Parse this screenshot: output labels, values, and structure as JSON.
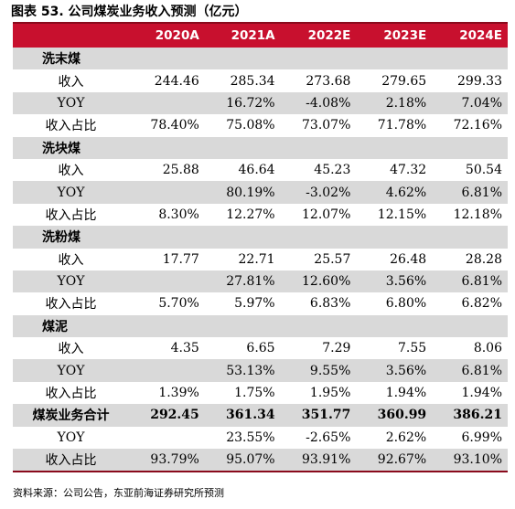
{
  "figure": {
    "title": "图表 53. 公司煤炭业务收入预测（亿元）",
    "source": "资料来源：公司公告，东亚前海证券研究所预测"
  },
  "table": {
    "columns": [
      "",
      "2020A",
      "2021A",
      "2022E",
      "2023E",
      "2024E"
    ],
    "rows": [
      {
        "type": "section",
        "shade": true,
        "cells": [
          "洗末煤",
          "",
          "",
          "",
          "",
          ""
        ]
      },
      {
        "type": "data",
        "shade": false,
        "cells": [
          "收入",
          "244.46",
          "285.34",
          "273.68",
          "279.65",
          "299.33"
        ]
      },
      {
        "type": "data",
        "shade": true,
        "cells": [
          "YOY",
          "",
          "16.72%",
          "-4.08%",
          "2.18%",
          "7.04%"
        ]
      },
      {
        "type": "data",
        "shade": false,
        "cells": [
          "收入占比",
          "78.40%",
          "75.08%",
          "73.07%",
          "71.78%",
          "72.16%"
        ]
      },
      {
        "type": "section",
        "shade": true,
        "cells": [
          "洗块煤",
          "",
          "",
          "",
          "",
          ""
        ]
      },
      {
        "type": "data",
        "shade": false,
        "cells": [
          "收入",
          "25.88",
          "46.64",
          "45.23",
          "47.32",
          "50.54"
        ]
      },
      {
        "type": "data",
        "shade": true,
        "cells": [
          "YOY",
          "",
          "80.19%",
          "-3.02%",
          "4.62%",
          "6.81%"
        ]
      },
      {
        "type": "data",
        "shade": false,
        "cells": [
          "收入占比",
          "8.30%",
          "12.27%",
          "12.07%",
          "12.15%",
          "12.18%"
        ]
      },
      {
        "type": "section",
        "shade": true,
        "cells": [
          "洗粉煤",
          "",
          "",
          "",
          "",
          ""
        ]
      },
      {
        "type": "data",
        "shade": false,
        "cells": [
          "收入",
          "17.77",
          "22.71",
          "25.57",
          "26.48",
          "28.28"
        ]
      },
      {
        "type": "data",
        "shade": true,
        "cells": [
          "YOY",
          "",
          "27.81%",
          "12.60%",
          "3.56%",
          "6.81%"
        ]
      },
      {
        "type": "data",
        "shade": false,
        "cells": [
          "收入占比",
          "5.70%",
          "5.97%",
          "6.83%",
          "6.80%",
          "6.82%"
        ]
      },
      {
        "type": "section",
        "shade": true,
        "cells": [
          "煤泥",
          "",
          "",
          "",
          "",
          ""
        ]
      },
      {
        "type": "data",
        "shade": false,
        "cells": [
          "收入",
          "4.35",
          "6.65",
          "7.29",
          "7.55",
          "8.06"
        ]
      },
      {
        "type": "data",
        "shade": true,
        "cells": [
          "YOY",
          "",
          "53.13%",
          "9.55%",
          "3.56%",
          "6.81%"
        ]
      },
      {
        "type": "data",
        "shade": false,
        "cells": [
          "收入占比",
          "1.39%",
          "1.75%",
          "1.95%",
          "1.94%",
          "1.94%"
        ]
      },
      {
        "type": "total",
        "shade": true,
        "cells": [
          "煤炭业务合计",
          "292.45",
          "361.34",
          "351.77",
          "360.99",
          "386.21"
        ]
      },
      {
        "type": "data",
        "shade": false,
        "cells": [
          "YOY",
          "",
          "23.55%",
          "-2.65%",
          "2.62%",
          "6.99%"
        ]
      },
      {
        "type": "data",
        "shade": true,
        "cells": [
          "收入占比",
          "93.79%",
          "95.07%",
          "93.91%",
          "92.67%",
          "93.10%"
        ]
      }
    ]
  },
  "colors": {
    "header_bg": "#c8102e",
    "header_text": "#ffffff",
    "shade_bg": "#d9d9d9"
  }
}
